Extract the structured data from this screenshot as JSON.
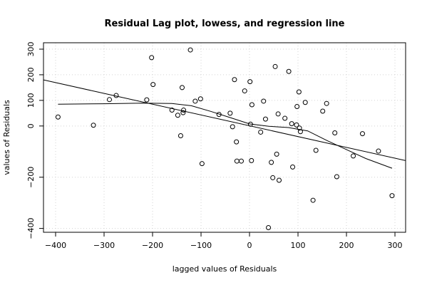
{
  "chart_data": {
    "type": "scatter",
    "title": "Residual Lag plot, lowess, and regression line",
    "xlabel": "lagged values of Residuals",
    "ylabel": "values of Residuals",
    "xlim": [
      -425,
      322
    ],
    "ylim": [
      -415,
      325
    ],
    "x_ticks": [
      -400,
      -300,
      -200,
      -100,
      0,
      100,
      200,
      300
    ],
    "x_tick_labels": [
      "−400",
      "−300",
      "−200",
      "−100",
      "0",
      "100",
      "200",
      "300"
    ],
    "y_ticks": [
      -400,
      -200,
      0,
      100,
      200,
      300
    ],
    "y_tick_labels": [
      "−400",
      "−200",
      "0",
      "100",
      "200",
      "300"
    ],
    "grid": true,
    "colors": {
      "points": "#000000",
      "lines": "#000000",
      "grid": "#d3d3d3"
    },
    "points": [
      {
        "x": -395,
        "y": 35
      },
      {
        "x": -322,
        "y": 3
      },
      {
        "x": -289,
        "y": 103
      },
      {
        "x": -275,
        "y": 119
      },
      {
        "x": -212,
        "y": 102
      },
      {
        "x": -202,
        "y": 267
      },
      {
        "x": -199,
        "y": 162
      },
      {
        "x": -160,
        "y": 62
      },
      {
        "x": -148,
        "y": 42
      },
      {
        "x": -142,
        "y": -38
      },
      {
        "x": -139,
        "y": 150
      },
      {
        "x": -137,
        "y": 52
      },
      {
        "x": -136,
        "y": 62
      },
      {
        "x": -122,
        "y": 297
      },
      {
        "x": -112,
        "y": 97
      },
      {
        "x": -101,
        "y": 106
      },
      {
        "x": -98,
        "y": -147
      },
      {
        "x": -63,
        "y": 45
      },
      {
        "x": -40,
        "y": 50
      },
      {
        "x": -35,
        "y": -3
      },
      {
        "x": -31,
        "y": 181
      },
      {
        "x": -27,
        "y": -62
      },
      {
        "x": -26,
        "y": -137
      },
      {
        "x": -17,
        "y": -137
      },
      {
        "x": -10,
        "y": 137
      },
      {
        "x": 1,
        "y": 173
      },
      {
        "x": 2,
        "y": 7
      },
      {
        "x": 4,
        "y": -135
      },
      {
        "x": 5,
        "y": 83
      },
      {
        "x": 23,
        "y": -24
      },
      {
        "x": 29,
        "y": 97
      },
      {
        "x": 33,
        "y": 27
      },
      {
        "x": 39,
        "y": -397
      },
      {
        "x": 45,
        "y": -142
      },
      {
        "x": 48,
        "y": -202
      },
      {
        "x": 53,
        "y": 232
      },
      {
        "x": 56,
        "y": -110
      },
      {
        "x": 59,
        "y": 47
      },
      {
        "x": 61,
        "y": -212
      },
      {
        "x": 73,
        "y": 30
      },
      {
        "x": 81,
        "y": 213
      },
      {
        "x": 87,
        "y": 9
      },
      {
        "x": 89,
        "y": -160
      },
      {
        "x": 97,
        "y": 4
      },
      {
        "x": 98,
        "y": 76
      },
      {
        "x": 102,
        "y": 133
      },
      {
        "x": 103,
        "y": -8
      },
      {
        "x": 105,
        "y": -22
      },
      {
        "x": 115,
        "y": 92
      },
      {
        "x": 131,
        "y": -290
      },
      {
        "x": 137,
        "y": -95
      },
      {
        "x": 151,
        "y": 58
      },
      {
        "x": 159,
        "y": 88
      },
      {
        "x": 176,
        "y": -27
      },
      {
        "x": 180,
        "y": -198
      },
      {
        "x": 214,
        "y": -117
      },
      {
        "x": 233,
        "y": -30
      },
      {
        "x": 266,
        "y": -98
      },
      {
        "x": 294,
        "y": -272
      }
    ],
    "regression_line": [
      {
        "x": -425,
        "y": 180
      },
      {
        "x": 322,
        "y": -135
      }
    ],
    "lowess_line": [
      {
        "x": -395,
        "y": 85
      },
      {
        "x": -300,
        "y": 87
      },
      {
        "x": -220,
        "y": 89
      },
      {
        "x": -160,
        "y": 88
      },
      {
        "x": -120,
        "y": 79
      },
      {
        "x": -80,
        "y": 57
      },
      {
        "x": -40,
        "y": 33
      },
      {
        "x": 0,
        "y": 8
      },
      {
        "x": 40,
        "y": -1
      },
      {
        "x": 80,
        "y": -6
      },
      {
        "x": 120,
        "y": -19
      },
      {
        "x": 160,
        "y": -57
      },
      {
        "x": 200,
        "y": -92
      },
      {
        "x": 240,
        "y": -127
      },
      {
        "x": 294,
        "y": -165
      }
    ]
  }
}
